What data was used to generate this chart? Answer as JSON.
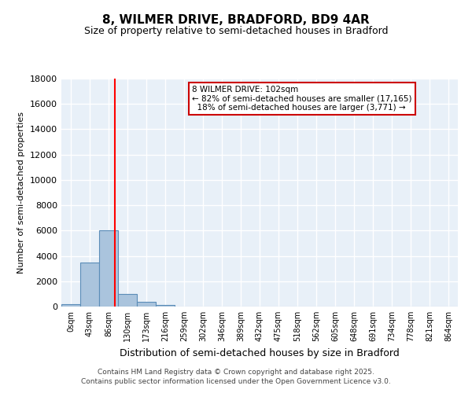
{
  "title": "8, WILMER DRIVE, BRADFORD, BD9 4AR",
  "subtitle": "Size of property relative to semi-detached houses in Bradford",
  "xlabel": "Distribution of semi-detached houses by size in Bradford",
  "ylabel": "Number of semi-detached properties",
  "bin_labels": [
    "0sqm",
    "43sqm",
    "86sqm",
    "130sqm",
    "173sqm",
    "216sqm",
    "259sqm",
    "302sqm",
    "346sqm",
    "389sqm",
    "432sqm",
    "475sqm",
    "518sqm",
    "562sqm",
    "605sqm",
    "648sqm",
    "691sqm",
    "734sqm",
    "778sqm",
    "821sqm",
    "864sqm"
  ],
  "bar_values": [
    200,
    3500,
    6000,
    1000,
    350,
    100,
    0,
    0,
    0,
    0,
    0,
    0,
    0,
    0,
    0,
    0,
    0,
    0,
    0,
    0,
    0
  ],
  "bar_color": "#aac4dd",
  "bar_edgecolor": "#5b8db8",
  "bg_color": "#e8f0f8",
  "grid_color": "#ffffff",
  "red_line_x": 2.33,
  "property_size": "102sqm",
  "pct_smaller": 82,
  "n_smaller": 17165,
  "pct_larger": 18,
  "n_larger": 3771,
  "ylim": [
    0,
    18000
  ],
  "yticks": [
    0,
    2000,
    4000,
    6000,
    8000,
    10000,
    12000,
    14000,
    16000,
    18000
  ],
  "footer_line1": "Contains HM Land Registry data © Crown copyright and database right 2025.",
  "footer_line2": "Contains public sector information licensed under the Open Government Licence v3.0.",
  "annotation_box_color": "#ffffff",
  "annotation_box_edgecolor": "#cc0000"
}
